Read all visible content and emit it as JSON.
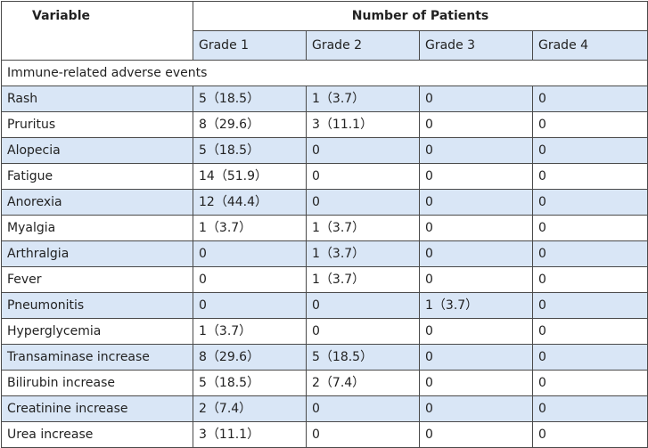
{
  "table": {
    "header": {
      "variable": "Variable",
      "group": "Number of Patients",
      "grades": [
        "Grade 1",
        "Grade 2",
        "Grade 3",
        "Grade 4"
      ]
    },
    "section_label": "Immune-related adverse events",
    "rows": [
      {
        "variable": "Rash",
        "values": [
          "5（18.5）",
          "1（3.7）",
          "0",
          "0"
        ]
      },
      {
        "variable": "Pruritus",
        "values": [
          "8（29.6）",
          "3（11.1）",
          "0",
          "0"
        ]
      },
      {
        "variable": "Alopecia",
        "values": [
          "5（18.5）",
          "0",
          "0",
          "0"
        ]
      },
      {
        "variable": "Fatigue",
        "values": [
          "14（51.9）",
          "0",
          "0",
          "0"
        ]
      },
      {
        "variable": "Anorexia",
        "values": [
          "12（44.4）",
          "0",
          "0",
          "0"
        ]
      },
      {
        "variable": "Myalgia",
        "values": [
          "1（3.7）",
          "1（3.7）",
          "0",
          "0"
        ]
      },
      {
        "variable": "Arthralgia",
        "values": [
          "0",
          "1（3.7）",
          "0",
          "0"
        ]
      },
      {
        "variable": "Fever",
        "values": [
          "0",
          "1（3.7）",
          "0",
          "0"
        ]
      },
      {
        "variable": "Pneumonitis",
        "values": [
          "0",
          "0",
          "1（3.7）",
          "0"
        ]
      },
      {
        "variable": "Hyperglycemia",
        "values": [
          "1（3.7）",
          "0",
          "0",
          "0"
        ]
      },
      {
        "variable": "Transaminase increase",
        "values": [
          "8（29.6）",
          "5（18.5）",
          "0",
          "0"
        ]
      },
      {
        "variable": "Bilirubin increase",
        "values": [
          "5（18.5）",
          "2（7.4）",
          "0",
          "0"
        ]
      },
      {
        "variable": "Creatinine increase",
        "values": [
          "2（7.4）",
          "0",
          "0",
          "0"
        ]
      },
      {
        "variable": "Urea increase",
        "values": [
          "3（11.1）",
          "0",
          "0",
          "0"
        ]
      }
    ]
  },
  "colors": {
    "row_shade": "#d9e6f6",
    "border": "#4a4a4a",
    "text": "#222222"
  }
}
